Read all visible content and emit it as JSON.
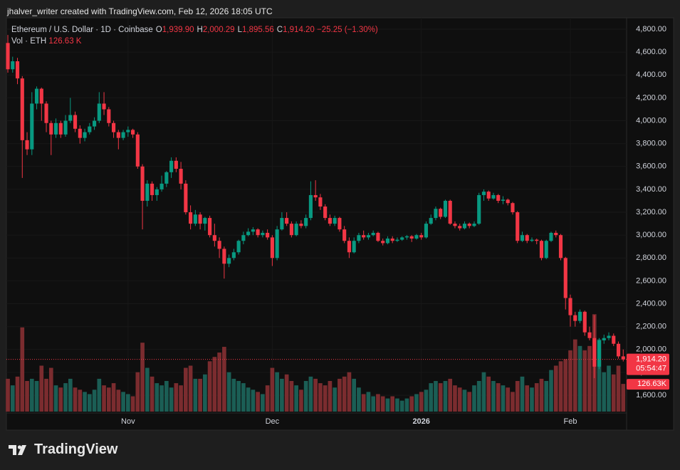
{
  "credit": "jhalver_writer created with TradingView.com, Feb 12, 2026 18:05 UTC",
  "brand": "TradingView",
  "chart_data": {
    "type": "candlestick",
    "legend": {
      "symbol": "Ethereum / U.S. Dollar · 1D · Coinbase",
      "ohlc": [
        {
          "key": "O",
          "value": "1,939.90"
        },
        {
          "key": "H",
          "value": "2,000.29"
        },
        {
          "key": "L",
          "value": "1,895.56"
        },
        {
          "key": "C",
          "value": "1,914.20"
        }
      ],
      "change": "−25.25 (−1.30%)",
      "volume_name": "Vol · ETH",
      "volume_value": "126.63 K"
    },
    "countdown": "05:54:47",
    "volume_tag": "126.63K",
    "up_color": "#089981",
    "down_color": "#f23645",
    "volume_up_color": "#1b5e55",
    "volume_down_color": "#7b2c2f",
    "xlim": [
      -0.3,
      128.7
    ],
    "xticks": [
      {
        "value": 25,
        "label": "Nov"
      },
      {
        "value": 55,
        "label": "Dec"
      },
      {
        "value": 86,
        "label": "2026"
      },
      {
        "value": 117,
        "label": "Feb"
      }
    ],
    "ylim": [
      1457,
      4900
    ],
    "yticks": [
      {
        "value": 1600,
        "label": "1,600.00"
      },
      {
        "value": 1800,
        "label": "1,800.00"
      },
      {
        "value": 2000,
        "label": "2,000.00"
      },
      {
        "value": 2200,
        "label": "2,200.00"
      },
      {
        "value": 2400,
        "label": "2,400.00"
      },
      {
        "value": 2600,
        "label": "2,600.00"
      },
      {
        "value": 2800,
        "label": "2,800.00"
      },
      {
        "value": 3000,
        "label": "3,000.00"
      },
      {
        "value": 3200,
        "label": "3,200.00"
      },
      {
        "value": 3400,
        "label": "3,400.00"
      },
      {
        "value": 3600,
        "label": "3,600.00"
      },
      {
        "value": 3800,
        "label": "3,800.00"
      },
      {
        "value": 4000,
        "label": "4,000.00"
      },
      {
        "value": 4200,
        "label": "4,200.00"
      },
      {
        "value": 4400,
        "label": "4,400.00"
      },
      {
        "value": 4600,
        "label": "4,600.00"
      },
      {
        "value": 4800,
        "label": "4,800.00"
      }
    ],
    "y2lim": [
      0,
      1800
    ],
    "grid": true,
    "open": [
      4680,
      4450,
      4520,
      4370,
      3830,
      3750,
      4150,
      4280,
      4150,
      3980,
      3880,
      3980,
      3880,
      4000,
      4050,
      3930,
      3850,
      3900,
      3950,
      4000,
      4150,
      4100,
      3980,
      3900,
      3850,
      3900,
      3920,
      3880,
      3600,
      3300,
      3450,
      3350,
      3400,
      3450,
      3550,
      3650,
      3580,
      3450,
      3200,
      3100,
      3180,
      3100,
      3150,
      3000,
      2950,
      2880,
      2750,
      2800,
      2850,
      2950,
      3000,
      3030,
      3050,
      3000,
      3020,
      2980,
      2800,
      3050,
      3150,
      3100,
      3000,
      3100,
      3080,
      3150,
      3350,
      3330,
      3250,
      3150,
      3100,
      3150,
      3050,
      2950,
      2850,
      2950,
      3000,
      2980,
      3000,
      3020,
      2950,
      2930,
      2970,
      2950,
      2960,
      2980,
      2990,
      2970,
      3000,
      2980,
      3100,
      3150,
      3230,
      3160,
      3300,
      3100,
      3080,
      3060,
      3100,
      3080,
      3100,
      3350,
      3380,
      3320,
      3350,
      3300,
      3310,
      3280,
      3200,
      2950,
      3000,
      2950,
      2960,
      2950,
      2800,
      2950,
      3020,
      3000,
      2800,
      2450,
      2300,
      2250,
      2330,
      2150,
      2100,
      1850,
      2080,
      2100,
      2120,
      2050,
      1939.9
    ],
    "high": [
      4750,
      4560,
      4550,
      4390,
      3900,
      4250,
      4300,
      4290,
      4170,
      4000,
      4020,
      4000,
      4050,
      4200,
      4080,
      3960,
      3930,
      3980,
      4030,
      4250,
      4250,
      4120,
      4000,
      3920,
      3920,
      3950,
      3930,
      3900,
      3620,
      3480,
      3470,
      3420,
      3520,
      3560,
      3680,
      3680,
      3640,
      3480,
      3260,
      3220,
      3200,
      3160,
      3170,
      3100,
      2980,
      2900,
      2830,
      2880,
      2960,
      3030,
      3060,
      3070,
      3060,
      3040,
      3050,
      3000,
      3080,
      3200,
      3200,
      3120,
      3120,
      3130,
      3180,
      3470,
      3480,
      3360,
      3270,
      3180,
      3170,
      3160,
      3080,
      2980,
      2980,
      3020,
      3040,
      3020,
      3040,
      3030,
      2970,
      2990,
      2990,
      2980,
      2990,
      3000,
      3000,
      3010,
      3020,
      3120,
      3180,
      3250,
      3240,
      3310,
      3310,
      3120,
      3100,
      3120,
      3110,
      3120,
      3370,
      3400,
      3390,
      3370,
      3360,
      3340,
      3320,
      3290,
      3210,
      3030,
      3010,
      2980,
      2970,
      2960,
      2960,
      3030,
      3040,
      3010,
      2810,
      2480,
      2330,
      2350,
      2340,
      2200,
      2300,
      2100,
      2130,
      2150,
      2140,
      2070,
      2000.29
    ],
    "low": [
      4420,
      4420,
      4320,
      3500,
      3700,
      3700,
      4100,
      4000,
      3900,
      3700,
      3850,
      3850,
      3860,
      3980,
      3900,
      3800,
      3820,
      3880,
      3920,
      3980,
      4050,
      3950,
      3850,
      3750,
      3830,
      3860,
      3850,
      3580,
      3050,
      3250,
      3300,
      3300,
      3380,
      3420,
      3500,
      3550,
      3400,
      3180,
      3050,
      3080,
      3050,
      3040,
      2980,
      2900,
      2800,
      2620,
      2720,
      2780,
      2830,
      2920,
      2990,
      3000,
      2980,
      2980,
      2960,
      2730,
      2780,
      3040,
      3080,
      2980,
      2990,
      3060,
      3060,
      3130,
      3300,
      3220,
      3130,
      3080,
      3080,
      3030,
      2930,
      2800,
      2840,
      2930,
      2960,
      2960,
      2990,
      2940,
      2910,
      2920,
      2930,
      2940,
      2950,
      2960,
      2940,
      2960,
      2960,
      2970,
      3090,
      3130,
      3140,
      3150,
      3090,
      3060,
      3040,
      3050,
      3060,
      3070,
      3090,
      3300,
      3300,
      3310,
      3280,
      3270,
      3260,
      3180,
      2930,
      2940,
      2930,
      2940,
      2920,
      2780,
      2790,
      2940,
      2980,
      2780,
      2350,
      2200,
      2200,
      2230,
      2120,
      2080,
      1750,
      1830,
      2050,
      2080,
      2030,
      1920,
      1895.56
    ],
    "close": [
      4450,
      4520,
      4370,
      3830,
      3750,
      4150,
      4280,
      4150,
      3980,
      3880,
      3980,
      3880,
      4000,
      4050,
      3930,
      3850,
      3900,
      3950,
      4000,
      4150,
      4100,
      3980,
      3900,
      3850,
      3900,
      3920,
      3880,
      3600,
      3300,
      3450,
      3350,
      3400,
      3450,
      3550,
      3650,
      3580,
      3450,
      3200,
      3100,
      3180,
      3100,
      3150,
      3000,
      2950,
      2880,
      2750,
      2800,
      2850,
      2950,
      3000,
      3030,
      3050,
      3000,
      3020,
      2980,
      2800,
      3050,
      3150,
      3100,
      3000,
      3100,
      3080,
      3150,
      3350,
      3330,
      3250,
      3150,
      3100,
      3150,
      3050,
      2950,
      2850,
      2950,
      3000,
      2980,
      3000,
      3020,
      2950,
      2930,
      2970,
      2950,
      2960,
      2980,
      2990,
      2970,
      3000,
      2980,
      3100,
      3150,
      3230,
      3160,
      3300,
      3100,
      3080,
      3060,
      3100,
      3080,
      3100,
      3350,
      3380,
      3320,
      3350,
      3300,
      3310,
      3280,
      3200,
      2950,
      3000,
      2950,
      2960,
      2950,
      2800,
      2950,
      3020,
      3000,
      2800,
      2450,
      2300,
      2250,
      2330,
      2150,
      2100,
      1850,
      2080,
      2100,
      2120,
      2050,
      1939.9,
      1914.2
    ],
    "volume": [
      150,
      120,
      160,
      385,
      140,
      150,
      140,
      210,
      150,
      200,
      120,
      110,
      130,
      150,
      110,
      100,
      90,
      80,
      100,
      150,
      120,
      110,
      130,
      100,
      90,
      80,
      70,
      180,
      315,
      200,
      160,
      130,
      120,
      140,
      110,
      130,
      120,
      200,
      210,
      150,
      150,
      170,
      230,
      250,
      270,
      296,
      180,
      150,
      140,
      130,
      110,
      100,
      90,
      80,
      120,
      200,
      180,
      150,
      170,
      140,
      120,
      100,
      140,
      160,
      150,
      130,
      120,
      140,
      110,
      150,
      160,
      180,
      150,
      110,
      80,
      90,
      70,
      80,
      70,
      60,
      70,
      60,
      50,
      60,
      70,
      80,
      90,
      100,
      130,
      140,
      130,
      140,
      150,
      120,
      110,
      100,
      90,
      120,
      140,
      180,
      160,
      140,
      130,
      120,
      110,
      90,
      140,
      160,
      120,
      110,
      130,
      150,
      140,
      190,
      210,
      230,
      240,
      280,
      330,
      300,
      280,
      300,
      445,
      330,
      180,
      210,
      170,
      210,
      126.63
    ]
  }
}
